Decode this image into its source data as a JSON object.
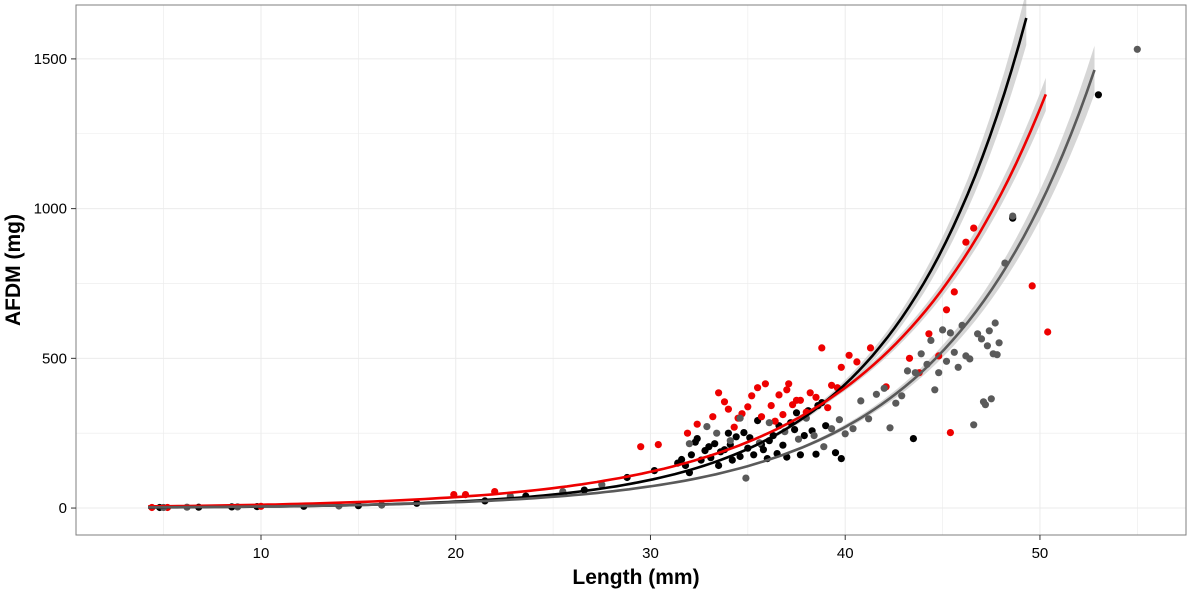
{
  "chart_data": {
    "type": "scatter",
    "title": "",
    "xlabel": "Length (mm)",
    "ylabel": "AFDM (mg)",
    "xlim": [
      0.5,
      57.5
    ],
    "ylim": [
      -90,
      1680
    ],
    "x_ticks": [
      10,
      20,
      30,
      40,
      50
    ],
    "y_ticks": [
      0,
      500,
      1000,
      1500
    ],
    "grid": true,
    "legend": "none",
    "colors": {
      "group_black": "#000000",
      "group_red": "#ee0000",
      "group_gray": "#5a5a5a",
      "confidence_band": "#c8c8c8",
      "panel_border": "#7f7f7f",
      "grid": "#ebebeb"
    },
    "series": [
      {
        "color": "#000000",
        "points": [
          [
            4.8,
            2
          ],
          [
            6.8,
            3
          ],
          [
            8.5,
            4
          ],
          [
            9.8,
            5
          ],
          [
            12.2,
            6
          ],
          [
            15,
            8
          ],
          [
            18,
            16
          ],
          [
            21.5,
            24
          ],
          [
            23.6,
            40
          ],
          [
            26.6,
            60
          ],
          [
            28.8,
            102
          ],
          [
            30.2,
            125
          ],
          [
            31.4,
            150
          ],
          [
            31.6,
            162
          ],
          [
            31.8,
            142
          ],
          [
            32,
            118
          ],
          [
            32.1,
            178
          ],
          [
            32.3,
            220
          ],
          [
            32.4,
            232
          ],
          [
            32.6,
            160
          ],
          [
            32.8,
            192
          ],
          [
            33,
            205
          ],
          [
            33.1,
            168
          ],
          [
            33.3,
            215
          ],
          [
            33.5,
            142
          ],
          [
            33.6,
            188
          ],
          [
            33.8,
            195
          ],
          [
            34,
            250
          ],
          [
            34.1,
            212
          ],
          [
            34.2,
            160
          ],
          [
            34.4,
            238
          ],
          [
            34.6,
            172
          ],
          [
            34.8,
            252
          ],
          [
            35,
            200
          ],
          [
            35.1,
            235
          ],
          [
            35.3,
            178
          ],
          [
            35.5,
            292
          ],
          [
            35.7,
            212
          ],
          [
            35.8,
            195
          ],
          [
            36,
            165
          ],
          [
            36.1,
            225
          ],
          [
            36.3,
            242
          ],
          [
            36.5,
            182
          ],
          [
            36.6,
            275
          ],
          [
            36.8,
            210
          ],
          [
            37,
            170
          ],
          [
            37.2,
            285
          ],
          [
            37.4,
            262
          ],
          [
            37.5,
            318
          ],
          [
            37.7,
            178
          ],
          [
            37.9,
            242
          ],
          [
            38.1,
            325
          ],
          [
            38.3,
            258
          ],
          [
            38.5,
            180
          ],
          [
            38.6,
            342
          ],
          [
            38.8,
            352
          ],
          [
            39,
            275
          ],
          [
            39.5,
            185
          ],
          [
            39.8,
            165
          ],
          [
            43.5,
            232
          ],
          [
            48.6,
            968
          ],
          [
            53,
            1380
          ]
        ],
        "fit": {
          "a": 1.115,
          "b": 0.1479,
          "x_range": [
            4.2,
            49.3
          ],
          "band_rel": 0.055
        }
      },
      {
        "color": "#ee0000",
        "points": [
          [
            4.4,
            2
          ],
          [
            5.2,
            2
          ],
          [
            10,
            6
          ],
          [
            19.9,
            45
          ],
          [
            20.5,
            45
          ],
          [
            22,
            55
          ],
          [
            29.5,
            205
          ],
          [
            30.4,
            212
          ],
          [
            31.9,
            250
          ],
          [
            32.4,
            280
          ],
          [
            33.2,
            305
          ],
          [
            33.5,
            385
          ],
          [
            33.8,
            355
          ],
          [
            34,
            330
          ],
          [
            34.3,
            270
          ],
          [
            34.5,
            300
          ],
          [
            34.7,
            315
          ],
          [
            35,
            338
          ],
          [
            35.2,
            375
          ],
          [
            35.5,
            402
          ],
          [
            35.7,
            305
          ],
          [
            35.9,
            415
          ],
          [
            36.2,
            342
          ],
          [
            36.4,
            290
          ],
          [
            36.6,
            378
          ],
          [
            36.8,
            312
          ],
          [
            37,
            395
          ],
          [
            37.1,
            415
          ],
          [
            37.3,
            345
          ],
          [
            37.5,
            360
          ],
          [
            37.7,
            360
          ],
          [
            38,
            320
          ],
          [
            38.2,
            385
          ],
          [
            38.5,
            370
          ],
          [
            38.8,
            535
          ],
          [
            39.1,
            335
          ],
          [
            39.3,
            410
          ],
          [
            39.6,
            402
          ],
          [
            39.8,
            470
          ],
          [
            40.2,
            510
          ],
          [
            40.6,
            488
          ],
          [
            41.3,
            535
          ],
          [
            42.1,
            405
          ],
          [
            43.3,
            500
          ],
          [
            43.8,
            452
          ],
          [
            44.3,
            582
          ],
          [
            44.8,
            508
          ],
          [
            45.2,
            662
          ],
          [
            45.4,
            252
          ],
          [
            45.6,
            722
          ],
          [
            46.2,
            888
          ],
          [
            46.6,
            935
          ],
          [
            49.6,
            742
          ],
          [
            50.4,
            588
          ]
        ],
        "fit": {
          "a": 3.32,
          "b": 0.1199,
          "x_range": [
            4.2,
            50.3
          ],
          "band_rel": 0.04
        }
      },
      {
        "color": "#5a5a5a",
        "points": [
          [
            5,
            2
          ],
          [
            6.2,
            3
          ],
          [
            8.8,
            4
          ],
          [
            14,
            7
          ],
          [
            16.2,
            10
          ],
          [
            22.8,
            40
          ],
          [
            25.5,
            55
          ],
          [
            27.5,
            78
          ],
          [
            32,
            215
          ],
          [
            32.9,
            272
          ],
          [
            33.4,
            250
          ],
          [
            34.1,
            225
          ],
          [
            34.6,
            300
          ],
          [
            34.9,
            100
          ],
          [
            35.6,
            218
          ],
          [
            36.1,
            285
          ],
          [
            36.9,
            255
          ],
          [
            37.6,
            230
          ],
          [
            38,
            300
          ],
          [
            38.4,
            242
          ],
          [
            38.9,
            205
          ],
          [
            39.3,
            265
          ],
          [
            39.7,
            295
          ],
          [
            40,
            248
          ],
          [
            40.4,
            265
          ],
          [
            40.8,
            358
          ],
          [
            41.2,
            298
          ],
          [
            41.6,
            380
          ],
          [
            42,
            400
          ],
          [
            42.3,
            268
          ],
          [
            42.6,
            350
          ],
          [
            42.9,
            375
          ],
          [
            43.2,
            458
          ],
          [
            43.6,
            452
          ],
          [
            43.9,
            515
          ],
          [
            44.2,
            480
          ],
          [
            44.4,
            560
          ],
          [
            44.6,
            395
          ],
          [
            44.8,
            452
          ],
          [
            45,
            595
          ],
          [
            45.2,
            490
          ],
          [
            45.4,
            585
          ],
          [
            45.6,
            520
          ],
          [
            45.8,
            470
          ],
          [
            46,
            610
          ],
          [
            46.2,
            508
          ],
          [
            46.4,
            498
          ],
          [
            46.6,
            278
          ],
          [
            46.8,
            582
          ],
          [
            47,
            565
          ],
          [
            47.1,
            355
          ],
          [
            47.2,
            345
          ],
          [
            47.3,
            542
          ],
          [
            47.4,
            592
          ],
          [
            47.5,
            365
          ],
          [
            47.6,
            515
          ],
          [
            47.7,
            618
          ],
          [
            47.8,
            512
          ],
          [
            47.9,
            552
          ],
          [
            48.2,
            818
          ],
          [
            48.6,
            975
          ],
          [
            55,
            1532
          ]
        ],
        "fit": {
          "a": 1.39,
          "b": 0.1318,
          "x_range": [
            4.2,
            52.8
          ],
          "band_rel": 0.055
        }
      }
    ]
  }
}
